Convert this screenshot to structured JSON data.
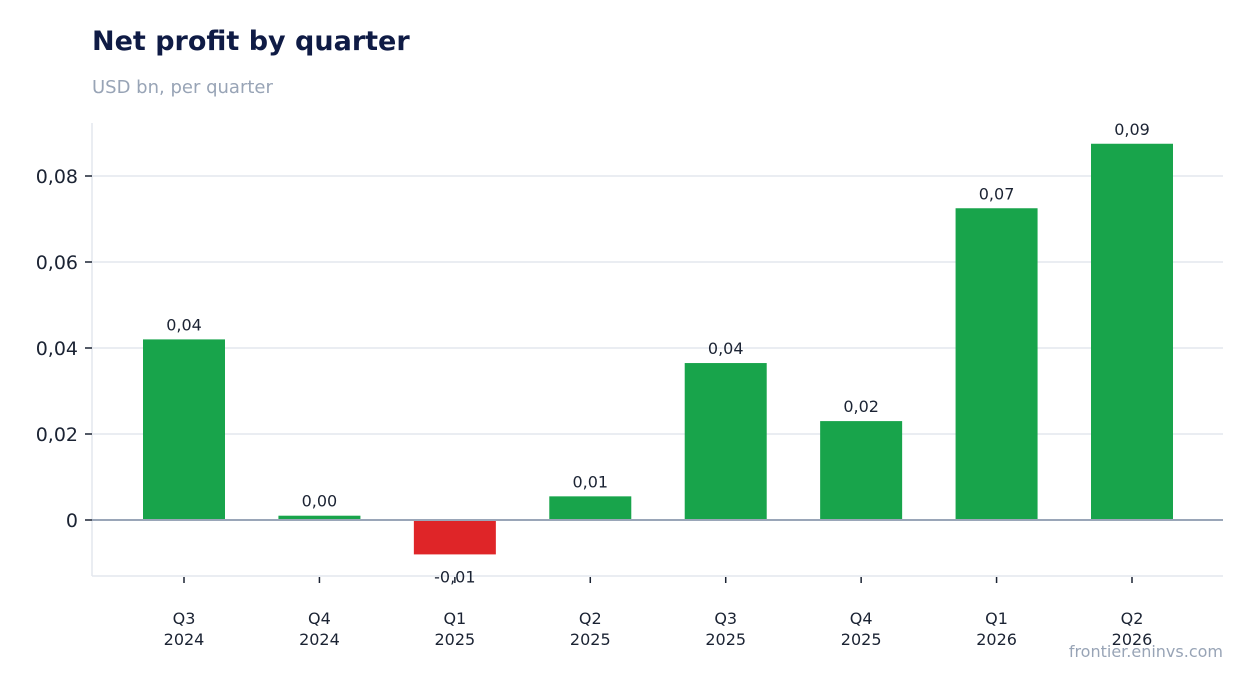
{
  "header": {
    "title": "Net profit by quarter",
    "subtitle": "USD bn, per quarter"
  },
  "footer": {
    "watermark": "frontier.eninvs.com"
  },
  "colors": {
    "positive": "#18a44b",
    "negative": "#df2528",
    "grid": "#e3e7ee",
    "zero_line": "#9aa6b8",
    "text": "#1b2333"
  },
  "chart_data": {
    "type": "bar",
    "title": "Net profit by quarter",
    "subtitle": "USD bn, per quarter",
    "xlabel": "",
    "ylabel": "",
    "categories": [
      [
        "Q3",
        "2024"
      ],
      [
        "Q4",
        "2024"
      ],
      [
        "Q1",
        "2025"
      ],
      [
        "Q2",
        "2025"
      ],
      [
        "Q3",
        "2025"
      ],
      [
        "Q4",
        "2025"
      ],
      [
        "Q1",
        "2026"
      ],
      [
        "Q2",
        "2026"
      ]
    ],
    "values": [
      0.042,
      0.001,
      -0.008,
      0.0055,
      0.0365,
      0.023,
      0.0725,
      0.0875
    ],
    "data_labels": [
      "0,04",
      "0,00",
      "-0,01",
      "0,01",
      "0,04",
      "0,02",
      "0,07",
      "0,09"
    ],
    "ylim": [
      -0.013,
      0.0925
    ],
    "yticks": [
      0,
      0.02,
      0.04,
      0.06,
      0.08
    ],
    "ytick_labels": [
      "0",
      "0,02",
      "0,04",
      "0,06",
      "0,08"
    ],
    "grid": true,
    "legend": "none"
  }
}
